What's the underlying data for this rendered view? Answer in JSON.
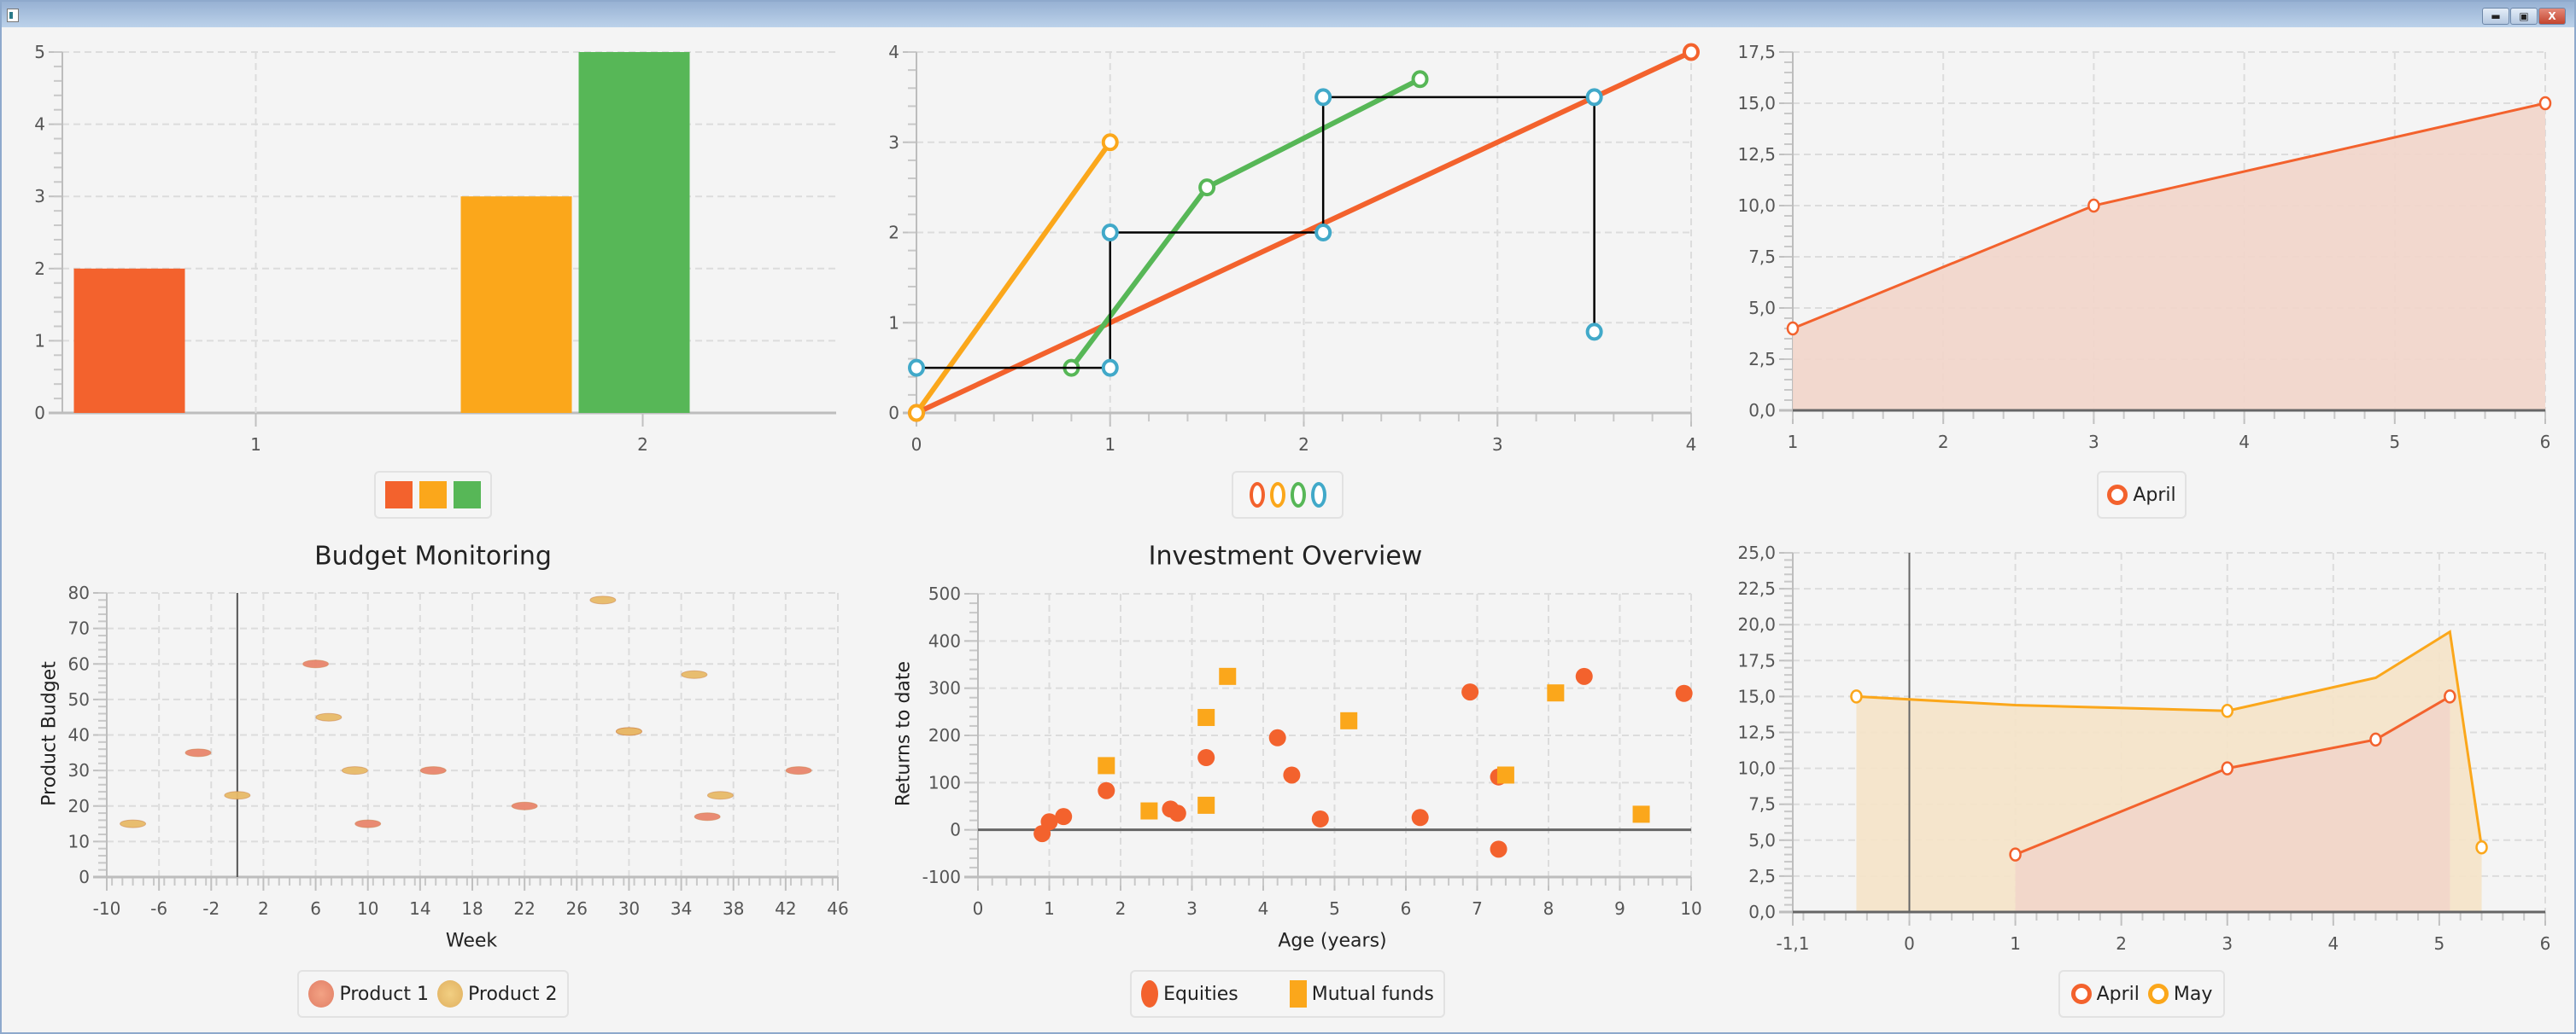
{
  "window": {
    "minimize_icon": "minimize-icon",
    "maximize_icon": "maximize-icon",
    "close_label": "X"
  },
  "colors": {
    "orange": "#f3622d",
    "yellow": "#fba71b",
    "green": "#57b757",
    "blue": "#41a9c9",
    "product1": "#e9866d",
    "product2": "#e8bb68"
  },
  "chart_data": [
    {
      "type": "bar",
      "title": "",
      "categories": [
        "1",
        "2"
      ],
      "yticks": [
        "0",
        "1",
        "2",
        "3",
        "4",
        "5"
      ],
      "ylim": [
        0,
        5
      ],
      "series": [
        {
          "name": "",
          "color": "#f3622d",
          "values": [
            2,
            null
          ]
        },
        {
          "name": "",
          "color": "#fba71b",
          "values": [
            null,
            3
          ]
        },
        {
          "name": "",
          "color": "#57b757",
          "values": [
            null,
            5
          ]
        }
      ],
      "legend": "bottom"
    },
    {
      "type": "line",
      "xticks": [
        "0",
        "1",
        "2",
        "3",
        "4"
      ],
      "yticks": [
        "0",
        "1",
        "2",
        "3",
        "4"
      ],
      "xlim": [
        0,
        4
      ],
      "ylim": [
        0,
        4
      ],
      "series": [
        {
          "name": "",
          "color": "#f3622d",
          "points": [
            [
              0,
              0
            ],
            [
              4,
              4
            ]
          ]
        },
        {
          "name": "",
          "color": "#fba71b",
          "points": [
            [
              0,
              0
            ],
            [
              1,
              3
            ]
          ]
        },
        {
          "name": "",
          "color": "#57b757",
          "points": [
            [
              0.8,
              0.5
            ],
            [
              1.5,
              2.5
            ],
            [
              2.6,
              3.7
            ]
          ]
        },
        {
          "name": "",
          "color": "#41a9c9",
          "line_color": "#000000",
          "points": [
            [
              0,
              0.5
            ],
            [
              1,
              0.5
            ],
            [
              1,
              2
            ],
            [
              2.1,
              2
            ],
            [
              2.1,
              3.5
            ],
            [
              3.5,
              3.5
            ],
            [
              3.5,
              0.9
            ]
          ]
        }
      ],
      "legend": "bottom"
    },
    {
      "type": "area",
      "xticks": [
        "1",
        "2",
        "3",
        "4",
        "5",
        "6"
      ],
      "yticks": [
        "0,0",
        "2,5",
        "5,0",
        "7,5",
        "10,0",
        "12,5",
        "15,0",
        "17,5"
      ],
      "xlim": [
        1,
        6
      ],
      "ylim": [
        0,
        17.5
      ],
      "series": [
        {
          "name": "April",
          "color": "#f3622d",
          "fill": "#f2d5ca",
          "points": [
            [
              1,
              4
            ],
            [
              3,
              10
            ],
            [
              6,
              15
            ]
          ],
          "markers": [
            true,
            true,
            true
          ]
        }
      ],
      "legend": "bottom"
    },
    {
      "type": "scatter",
      "title": "Budget Monitoring",
      "xlabel": "Week",
      "ylabel": "Product Budget",
      "xticks": [
        "-10",
        "-6",
        "-2",
        "2",
        "6",
        "10",
        "14",
        "18",
        "22",
        "26",
        "30",
        "34",
        "38",
        "42",
        "46"
      ],
      "yticks": [
        "0",
        "10",
        "20",
        "30",
        "40",
        "50",
        "60",
        "70",
        "80"
      ],
      "xlim": [
        -10,
        46
      ],
      "ylim": [
        0,
        80
      ],
      "series": [
        {
          "name": "Product 1",
          "color": "#e9866d",
          "points": [
            [
              -3,
              35
            ],
            [
              6,
              60
            ],
            [
              10,
              15
            ],
            [
              15,
              30
            ],
            [
              22,
              20
            ],
            [
              30,
              41
            ],
            [
              36,
              17
            ],
            [
              43,
              30
            ]
          ]
        },
        {
          "name": "Product 2",
          "color": "#e8bb68",
          "points": [
            [
              -8,
              15
            ],
            [
              0,
              23
            ],
            [
              7,
              45
            ],
            [
              9,
              30
            ],
            [
              28,
              78
            ],
            [
              30,
              41
            ],
            [
              35,
              57
            ],
            [
              37,
              23
            ]
          ]
        }
      ],
      "legend": "bottom"
    },
    {
      "type": "scatter",
      "title": "Investment Overview",
      "xlabel": "Age (years)",
      "ylabel": "Returns to date",
      "xticks": [
        "0",
        "1",
        "2",
        "3",
        "4",
        "5",
        "6",
        "7",
        "8",
        "9",
        "10"
      ],
      "yticks": [
        "-100",
        "0",
        "100",
        "200",
        "300",
        "400",
        "500"
      ],
      "xlim": [
        0,
        10
      ],
      "ylim": [
        -100,
        500
      ],
      "series": [
        {
          "name": "Equities",
          "color": "#f3622d",
          "shape": "circle",
          "points": [
            [
              0.9,
              -8
            ],
            [
              1.0,
              17
            ],
            [
              1.2,
              28
            ],
            [
              1.8,
              83
            ],
            [
              2.7,
              44
            ],
            [
              2.8,
              35
            ],
            [
              3.2,
              153
            ],
            [
              4.2,
              195
            ],
            [
              4.4,
              116
            ],
            [
              4.8,
              23
            ],
            [
              6.2,
              26
            ],
            [
              6.9,
              292
            ],
            [
              7.3,
              112
            ],
            [
              7.3,
              -41
            ],
            [
              8.5,
              325
            ],
            [
              9.9,
              289
            ]
          ]
        },
        {
          "name": "Mutual funds",
          "color": "#fba71b",
          "shape": "square",
          "points": [
            [
              1.8,
              136
            ],
            [
              2.4,
              40
            ],
            [
              3.2,
              238
            ],
            [
              3.2,
              52
            ],
            [
              3.5,
              325
            ],
            [
              5.2,
              231
            ],
            [
              7.4,
              116
            ],
            [
              8.1,
              290
            ],
            [
              9.3,
              33
            ]
          ]
        }
      ],
      "legend": "bottom"
    },
    {
      "type": "area",
      "xticks": [
        "-1,1",
        "0",
        "1",
        "2",
        "3",
        "4",
        "5",
        "6"
      ],
      "yticks": [
        "0,0",
        "2,5",
        "5,0",
        "7,5",
        "10,0",
        "12,5",
        "15,0",
        "17,5",
        "20,0",
        "22,5",
        "25,0"
      ],
      "xlim": [
        -1.1,
        6
      ],
      "ylim": [
        0,
        25
      ],
      "series": [
        {
          "name": "May",
          "color": "#fba71b",
          "fill": "#f5e3c8",
          "points": [
            [
              -0.5,
              15
            ],
            [
              1,
              14.4
            ],
            [
              3,
              14
            ],
            [
              4.4,
              16.3
            ],
            [
              5.1,
              19.5
            ],
            [
              5.4,
              4.5
            ]
          ],
          "markers": [
            true,
            false,
            true,
            false,
            false,
            true
          ]
        },
        {
          "name": "April",
          "color": "#f3622d",
          "fill": "#f2d5ca",
          "points": [
            [
              1,
              4
            ],
            [
              3,
              10
            ],
            [
              4.4,
              12
            ],
            [
              5.1,
              15
            ]
          ],
          "markers": [
            true,
            true,
            true,
            true
          ]
        }
      ],
      "legend_order": [
        "April",
        "May"
      ],
      "legend": "bottom"
    }
  ]
}
